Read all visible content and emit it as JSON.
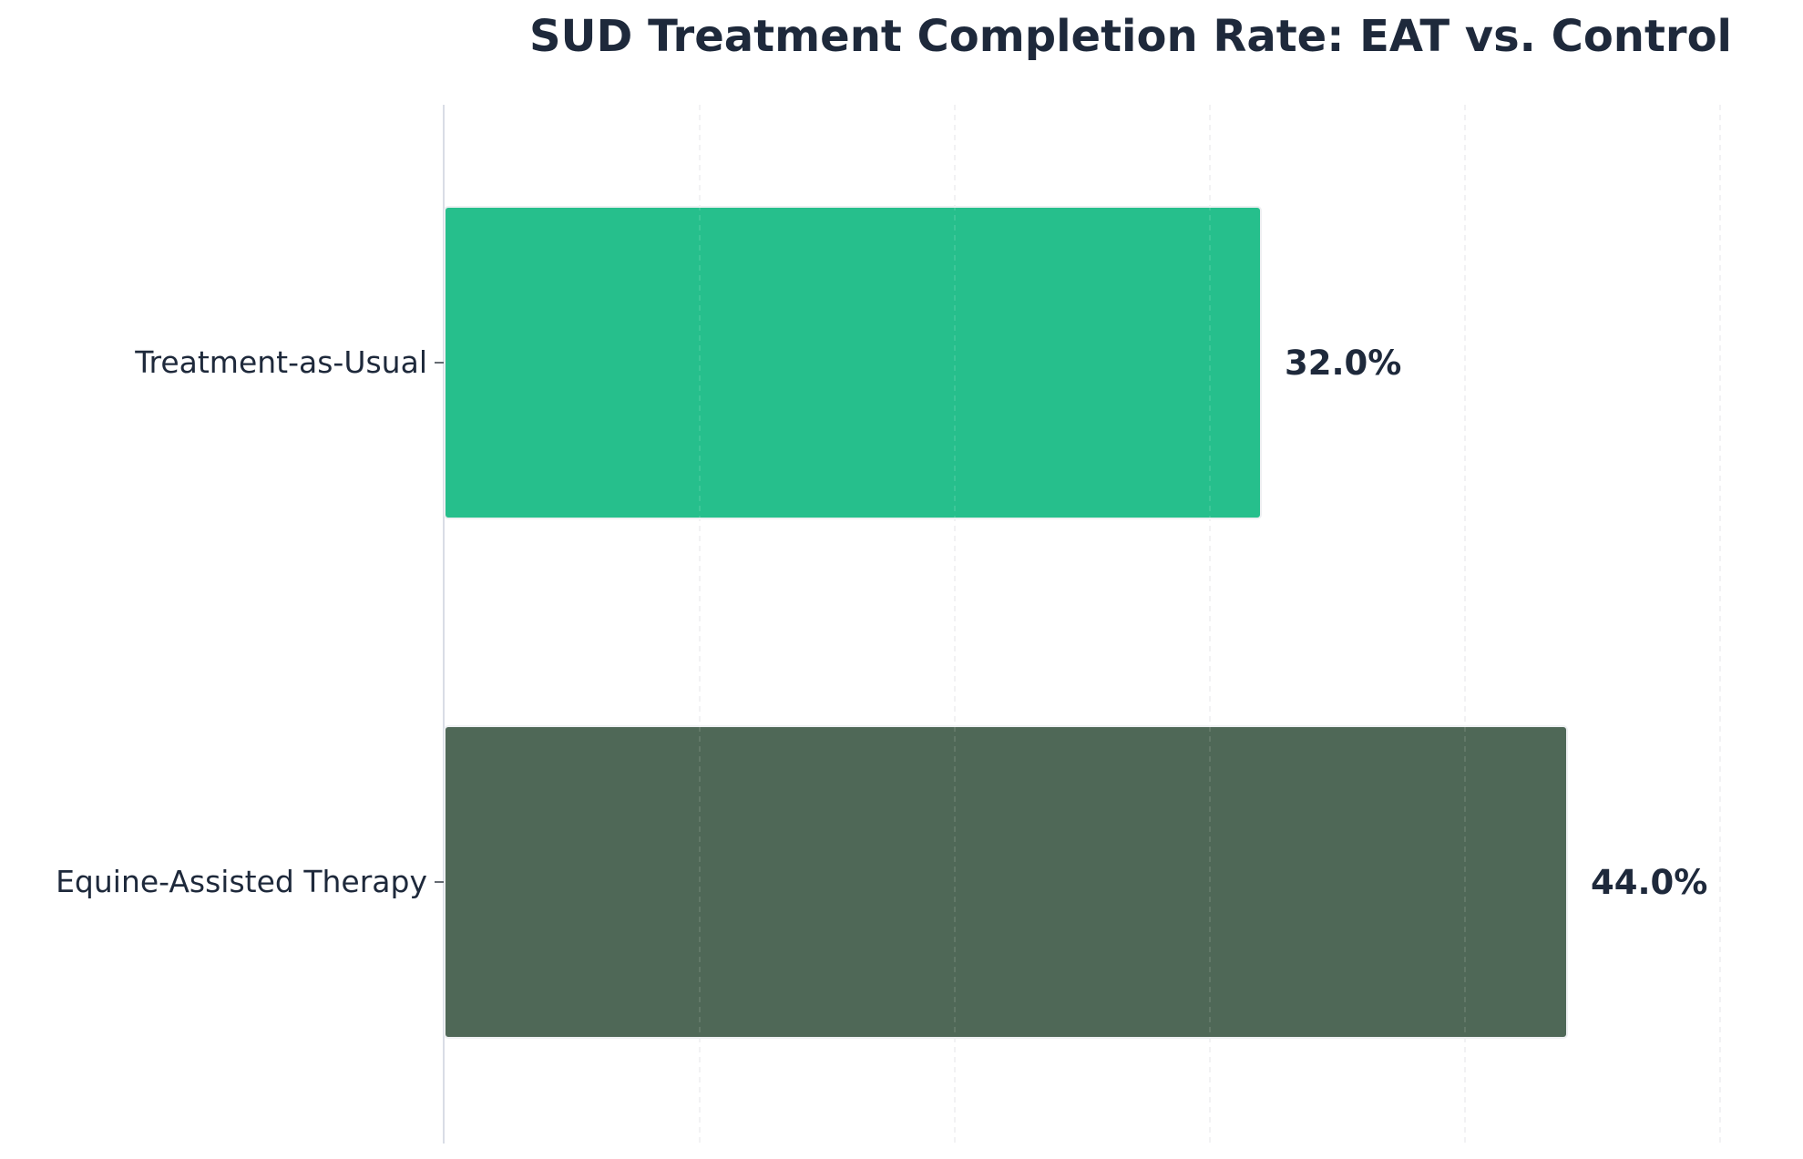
{
  "chart_data": {
    "type": "bar",
    "orientation": "horizontal",
    "title": "SUD Treatment Completion Rate: EAT vs. Control",
    "xlabel": "",
    "ylabel": "",
    "xlim": [
      0,
      50
    ],
    "grid": "vertical dashed",
    "categories": [
      "Equine-Assisted Therapy",
      "Treatment-as-Usual"
    ],
    "values": [
      44.0,
      32.0
    ],
    "data_labels": [
      "44.0%",
      "32.0%"
    ],
    "colors": [
      "#4f6857",
      "#26bf8c"
    ]
  },
  "colors": {
    "title": "#1e293b",
    "text": "#1e293b",
    "grid": "#e5e7eb",
    "axis": "#d9dde6"
  }
}
